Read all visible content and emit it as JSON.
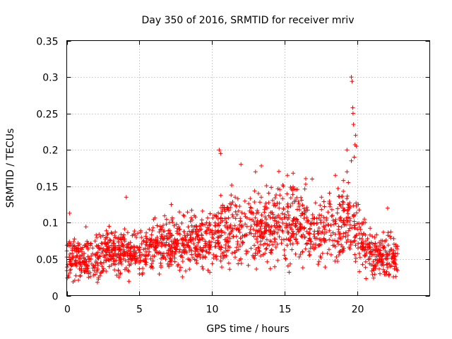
{
  "chart_data": {
    "type": "scatter",
    "title": "Day 350 of 2016, SRMTID for receiver mriv",
    "xlabel": "GPS time / hours",
    "ylabel": "SRMTID / TECUs",
    "xlim": [
      0,
      25
    ],
    "ylim": [
      0,
      0.35
    ],
    "grid": true,
    "marker": "+",
    "color": "#ff0000",
    "x_ticks": [
      0,
      5,
      10,
      15,
      20
    ],
    "x_tick_labels": [
      "0",
      "5",
      "10",
      "15",
      "20"
    ],
    "y_ticks": [
      0,
      0.05,
      0.1,
      0.15,
      0.2,
      0.25,
      0.3,
      0.35
    ],
    "y_tick_labels": [
      "0",
      "0.05",
      "0.1",
      "0.15",
      "0.2",
      "0.25",
      "0.3",
      "0.35"
    ],
    "envelope": {
      "x": [
        0,
        1,
        2,
        3,
        4,
        5,
        6,
        7,
        8,
        9,
        10,
        11,
        12,
        13,
        14,
        15,
        16,
        17,
        18,
        19,
        20,
        21,
        22,
        22.8
      ],
      "mean": [
        0.055,
        0.05,
        0.052,
        0.06,
        0.058,
        0.06,
        0.068,
        0.072,
        0.075,
        0.078,
        0.08,
        0.085,
        0.09,
        0.095,
        0.1,
        0.098,
        0.095,
        0.09,
        0.088,
        0.1,
        0.085,
        0.06,
        0.055,
        0.05
      ],
      "spread": [
        0.02,
        0.02,
        0.02,
        0.022,
        0.02,
        0.02,
        0.022,
        0.025,
        0.025,
        0.025,
        0.028,
        0.03,
        0.032,
        0.035,
        0.035,
        0.035,
        0.033,
        0.03,
        0.03,
        0.035,
        0.03,
        0.022,
        0.02,
        0.02
      ]
    },
    "sample_count": 1800,
    "notable_points": [
      {
        "x": 4.1,
        "y": 0.135
      },
      {
        "x": 10.5,
        "y": 0.2
      },
      {
        "x": 10.6,
        "y": 0.195
      },
      {
        "x": 12.0,
        "y": 0.18
      },
      {
        "x": 13.0,
        "y": 0.17
      },
      {
        "x": 13.4,
        "y": 0.178
      },
      {
        "x": 19.3,
        "y": 0.2
      },
      {
        "x": 19.6,
        "y": 0.3
      },
      {
        "x": 19.65,
        "y": 0.294
      },
      {
        "x": 19.7,
        "y": 0.258
      },
      {
        "x": 19.72,
        "y": 0.25
      },
      {
        "x": 19.75,
        "y": 0.235
      },
      {
        "x": 19.9,
        "y": 0.22
      },
      {
        "x": 19.85,
        "y": 0.207
      },
      {
        "x": 19.95,
        "y": 0.205
      },
      {
        "x": 19.8,
        "y": 0.19
      },
      {
        "x": 19.6,
        "y": 0.185
      },
      {
        "x": 19.3,
        "y": 0.17
      },
      {
        "x": 18.5,
        "y": 0.165
      },
      {
        "x": 16.9,
        "y": 0.16
      },
      {
        "x": 15.2,
        "y": 0.165
      },
      {
        "x": 22.1,
        "y": 0.12
      },
      {
        "x": 0.2,
        "y": 0.113
      },
      {
        "x": 7.2,
        "y": 0.125
      }
    ]
  }
}
